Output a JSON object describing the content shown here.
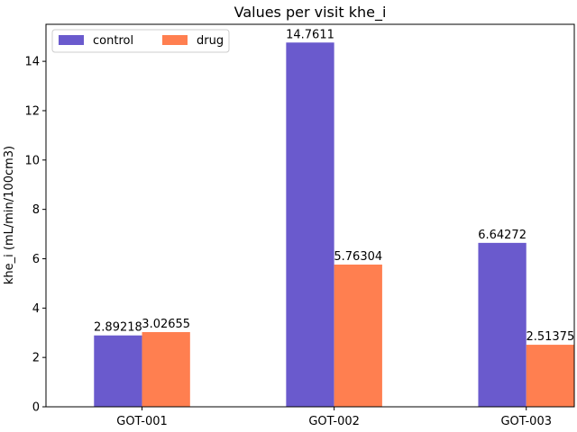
{
  "chart_data": {
    "type": "bar",
    "title": "Values per visit khe_i",
    "xlabel": "",
    "ylabel": "khe_i (mL/min/100cm3)",
    "categories": [
      "GOT-001",
      "GOT-002",
      "GOT-003"
    ],
    "series": [
      {
        "name": "control",
        "values": [
          2.89218,
          14.7611,
          6.64272
        ],
        "labels": [
          "2.89218",
          "14.7611",
          "6.64272"
        ],
        "color": "#6a5acd"
      },
      {
        "name": "drug",
        "values": [
          3.02655,
          5.76304,
          2.51375
        ],
        "labels": [
          "3.02655",
          "5.76304",
          "2.51375"
        ],
        "color": "#ff7f50"
      }
    ],
    "ylim": [
      0,
      15.5
    ],
    "yticks": [
      0,
      2,
      4,
      6,
      8,
      10,
      12,
      14
    ],
    "grid": false,
    "legend": {
      "position": "top-left",
      "columns": 2
    }
  }
}
